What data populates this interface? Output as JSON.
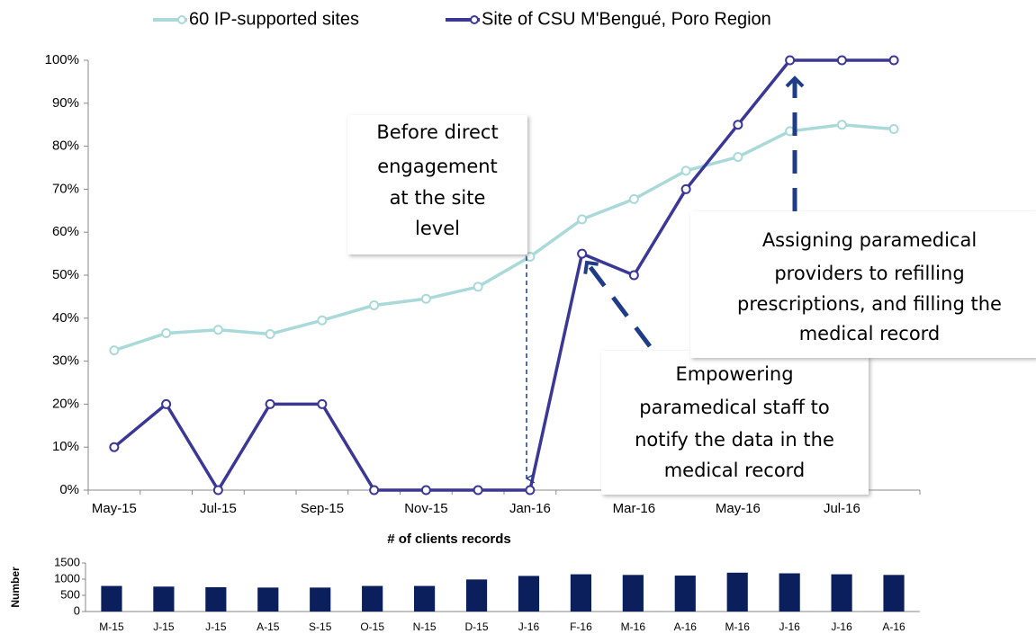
{
  "chart_data": [
    {
      "type": "line",
      "categories": [
        "May-15",
        null,
        "Jul-15",
        null,
        "Sep-15",
        null,
        "Nov-15",
        null,
        "Jan-16",
        null,
        "Mar-16",
        null,
        "May-16",
        null,
        "Jul-16",
        null
      ],
      "series": [
        {
          "name": "60 IP-supported sites",
          "color": "#a9d9d9",
          "values": [
            32.5,
            36.5,
            37.3,
            36.3,
            39.5,
            43,
            44.5,
            47.3,
            54.3,
            63,
            67.7,
            74.3,
            77.5,
            83.5,
            85,
            84
          ]
        },
        {
          "name": "Site of CSU M'Bengué, Poro Region",
          "color": "#3a3797",
          "values": [
            10,
            20,
            0,
            20,
            20,
            0,
            0,
            0,
            0,
            55,
            50,
            70,
            85,
            100,
            100,
            100
          ]
        }
      ],
      "ylim": [
        0,
        100
      ],
      "yticks": [
        {
          "value": 0,
          "label": "0%"
        },
        {
          "value": 10,
          "label": "10%"
        },
        {
          "value": 20,
          "label": "20%"
        },
        {
          "value": 30,
          "label": "30%"
        },
        {
          "value": 40,
          "label": "40%"
        },
        {
          "value": 50,
          "label": "50%"
        },
        {
          "value": 60,
          "label": "60%"
        },
        {
          "value": 70,
          "label": "70%"
        },
        {
          "value": 80,
          "label": "80%"
        },
        {
          "value": 90,
          "label": "90%"
        },
        {
          "value": 100,
          "label": "100%"
        }
      ],
      "grid": false,
      "legend": "top",
      "annotations": [
        [
          "Before direct",
          "engagement",
          "at the site",
          "level"
        ],
        [
          "Empowering",
          "paramedical staff to",
          "notify the data in the",
          "medical record"
        ],
        [
          "Assigning paramedical",
          "providers to refilling",
          "prescriptions, and filling the",
          "medical record"
        ]
      ]
    },
    {
      "type": "bar",
      "title": "# of clients records",
      "y_label": "Number",
      "categories": [
        "M-15",
        "J-15",
        "J-15",
        "A-15",
        "S-15",
        "O-15",
        "N-15",
        "D-15",
        "J-16",
        "F-16",
        "M-16",
        "A-16",
        "M-16",
        "J-16",
        "J-16",
        "A-16"
      ],
      "values": [
        790,
        770,
        750,
        740,
        740,
        790,
        790,
        990,
        1100,
        1150,
        1130,
        1110,
        1200,
        1180,
        1150,
        1130
      ],
      "color": "#0a1f5c",
      "ylim": [
        0,
        1500
      ],
      "yticks": [
        0,
        500,
        1000,
        1500
      ],
      "grid": false
    }
  ]
}
